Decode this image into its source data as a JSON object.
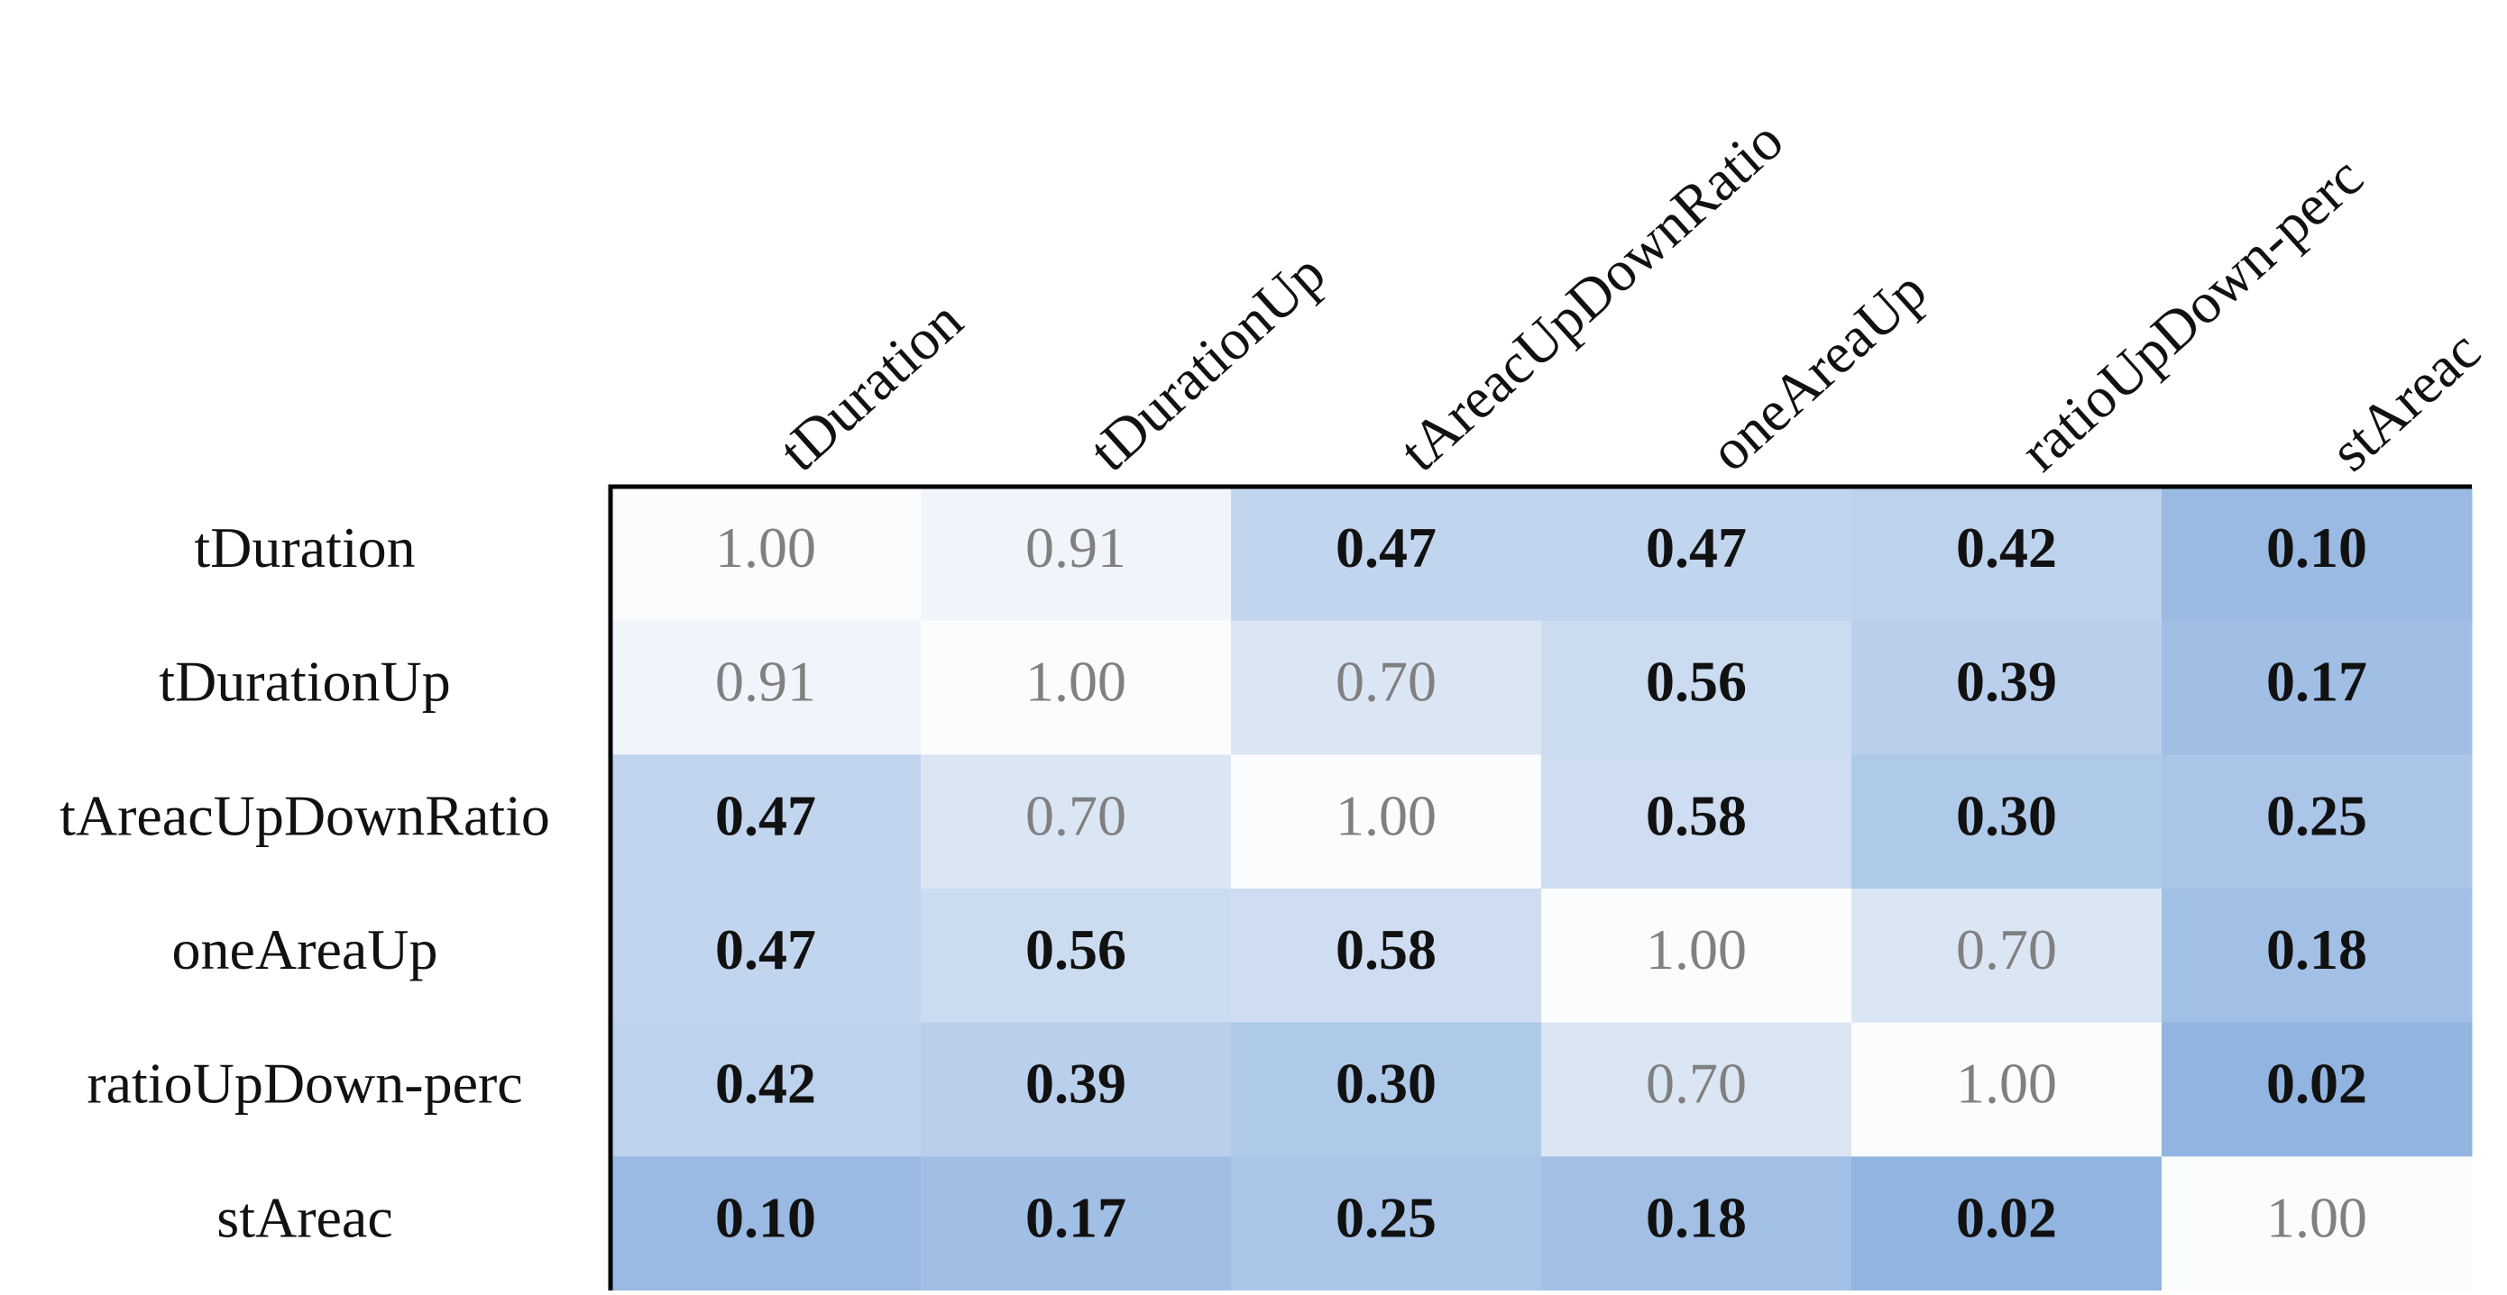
{
  "chart_data": {
    "type": "heatmap",
    "rows": [
      "tDuration",
      "tDurationUp",
      "tAreacUpDownRatio",
      "oneAreaUp",
      "ratioUpDown-perc",
      "stAreac"
    ],
    "columns": [
      "tDuration",
      "tDurationUp",
      "tAreacUpDownRatio",
      "oneAreaUp",
      "ratioUpDown-perc",
      "stAreac"
    ],
    "values": [
      [
        1.0,
        0.91,
        0.47,
        0.47,
        0.42,
        0.1
      ],
      [
        0.91,
        1.0,
        0.7,
        0.56,
        0.39,
        0.17
      ],
      [
        0.47,
        0.7,
        1.0,
        0.58,
        0.3,
        0.25
      ],
      [
        0.47,
        0.56,
        0.58,
        1.0,
        0.7,
        0.18
      ],
      [
        0.42,
        0.39,
        0.3,
        0.7,
        1.0,
        0.02
      ],
      [
        0.1,
        0.17,
        0.25,
        0.18,
        0.02,
        1.0
      ]
    ],
    "value_labels": [
      [
        "1.00",
        "0.91",
        "0.47",
        "0.47",
        "0.42",
        "0.10"
      ],
      [
        "0.91",
        "1.00",
        "0.70",
        "0.56",
        "0.39",
        "0.17"
      ],
      [
        "0.47",
        "0.70",
        "1.00",
        "0.58",
        "0.30",
        "0.25"
      ],
      [
        "0.47",
        "0.56",
        "0.58",
        "1.00",
        "0.70",
        "0.18"
      ],
      [
        "0.42",
        "0.39",
        "0.30",
        "0.70",
        "1.00",
        "0.02"
      ],
      [
        "0.10",
        "0.17",
        "0.25",
        "0.18",
        "0.02",
        "1.00"
      ]
    ],
    "colormap": [
      "#8fb3e0",
      "#fbfcfe"
    ],
    "bold_below": 0.6,
    "muted_color": "#808080"
  }
}
